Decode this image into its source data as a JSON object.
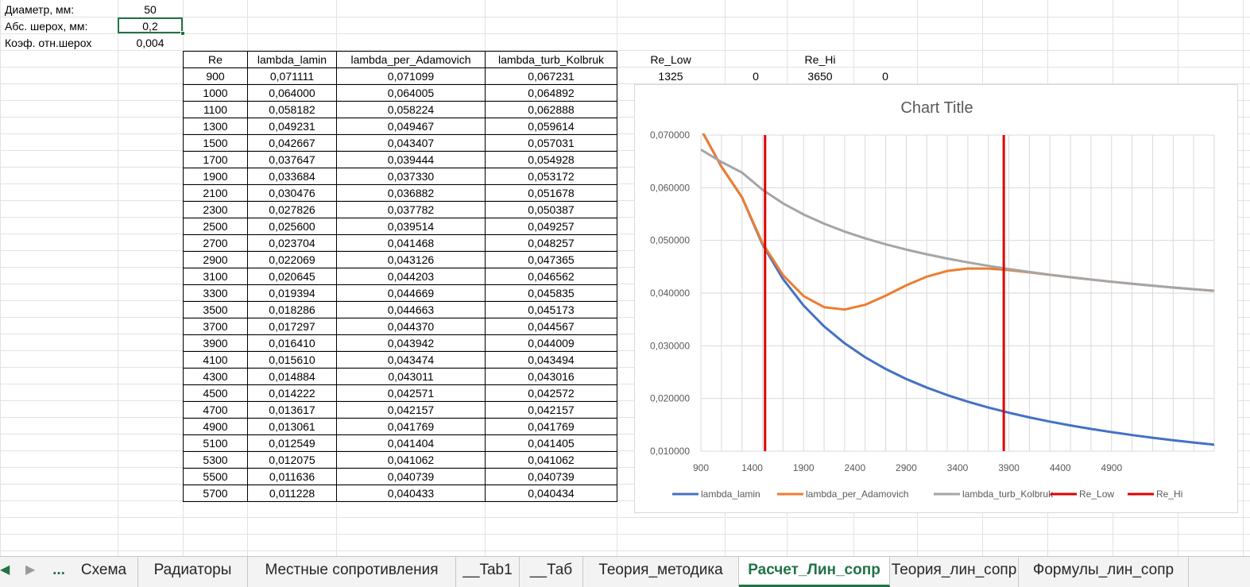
{
  "params": [
    {
      "label": "Диаметр, мм:",
      "value": "50"
    },
    {
      "label": "Абс. шерох, мм:",
      "value": "0,2"
    },
    {
      "label": "Коэф. отн.шерох",
      "value": "0,004"
    }
  ],
  "table": {
    "headers": [
      "Re",
      "lambda_lamin",
      "lambda_per_Adamovich",
      "lambda_turb_Kolbruk"
    ],
    "rows": [
      [
        "900",
        "0,071111",
        "0,071099",
        "0,067231"
      ],
      [
        "1000",
        "0,064000",
        "0,064005",
        "0,064892"
      ],
      [
        "1100",
        "0,058182",
        "0,058224",
        "0,062888"
      ],
      [
        "1300",
        "0,049231",
        "0,049467",
        "0,059614"
      ],
      [
        "1500",
        "0,042667",
        "0,043407",
        "0,057031"
      ],
      [
        "1700",
        "0,037647",
        "0,039444",
        "0,054928"
      ],
      [
        "1900",
        "0,033684",
        "0,037330",
        "0,053172"
      ],
      [
        "2100",
        "0,030476",
        "0,036882",
        "0,051678"
      ],
      [
        "2300",
        "0,027826",
        "0,037782",
        "0,050387"
      ],
      [
        "2500",
        "0,025600",
        "0,039514",
        "0,049257"
      ],
      [
        "2700",
        "0,023704",
        "0,041468",
        "0,048257"
      ],
      [
        "2900",
        "0,022069",
        "0,043126",
        "0,047365"
      ],
      [
        "3100",
        "0,020645",
        "0,044203",
        "0,046562"
      ],
      [
        "3300",
        "0,019394",
        "0,044669",
        "0,045835"
      ],
      [
        "3500",
        "0,018286",
        "0,044663",
        "0,045173"
      ],
      [
        "3700",
        "0,017297",
        "0,044370",
        "0,044567"
      ],
      [
        "3900",
        "0,016410",
        "0,043942",
        "0,044009"
      ],
      [
        "4100",
        "0,015610",
        "0,043474",
        "0,043494"
      ],
      [
        "4300",
        "0,014884",
        "0,043011",
        "0,043016"
      ],
      [
        "4500",
        "0,014222",
        "0,042571",
        "0,042572"
      ],
      [
        "4700",
        "0,013617",
        "0,042157",
        "0,042157"
      ],
      [
        "4900",
        "0,013061",
        "0,041769",
        "0,041769"
      ],
      [
        "5100",
        "0,012549",
        "0,041404",
        "0,041405"
      ],
      [
        "5300",
        "0,012075",
        "0,041062",
        "0,041062"
      ],
      [
        "5500",
        "0,011636",
        "0,040739",
        "0,040739"
      ],
      [
        "5700",
        "0,011228",
        "0,040433",
        "0,040434"
      ]
    ]
  },
  "markers": {
    "re_low_label": "Re_Low",
    "re_low_value": "1325",
    "re_low_zero": "0",
    "re_hi_label": "Re_Hi",
    "re_hi_value": "3650",
    "re_hi_zero": "0"
  },
  "chart_data": {
    "type": "line",
    "title": "Chart Title",
    "xlabel": "",
    "ylabel": "",
    "x": [
      900,
      1000,
      1100,
      1300,
      1500,
      1700,
      1900,
      2100,
      2300,
      2500,
      2700,
      2900,
      3100,
      3300,
      3500,
      3700,
      3900,
      4100,
      4300,
      4500,
      4700,
      4900,
      5100,
      5300,
      5500,
      5700
    ],
    "xlim": [
      900,
      5700
    ],
    "ylim": [
      0.01,
      0.07
    ],
    "x_ticks": [
      "900",
      "1400",
      "1900",
      "2400",
      "2900",
      "3400",
      "3900",
      "4400",
      "4900"
    ],
    "y_ticks": [
      "0,070000",
      "0,060000",
      "0,050000",
      "0,040000",
      "0,030000",
      "0,020000",
      "0,010000"
    ],
    "grid": true,
    "legend": "bottom",
    "series": [
      {
        "name": "lambda_lamin",
        "color": "#4472c4",
        "values": [
          0.071111,
          0.064,
          0.058182,
          0.049231,
          0.042667,
          0.037647,
          0.033684,
          0.030476,
          0.027826,
          0.0256,
          0.023704,
          0.022069,
          0.020645,
          0.019394,
          0.018286,
          0.017297,
          0.01641,
          0.01561,
          0.014884,
          0.014222,
          0.013617,
          0.013061,
          0.012549,
          0.012075,
          0.011636,
          0.011228
        ]
      },
      {
        "name": "lambda_per_Adamovich",
        "color": "#ed7d31",
        "values": [
          0.071099,
          0.064005,
          0.058224,
          0.049467,
          0.043407,
          0.039444,
          0.03733,
          0.036882,
          0.037782,
          0.039514,
          0.041468,
          0.043126,
          0.044203,
          0.044669,
          0.044663,
          0.04437,
          0.043942,
          0.043474,
          0.043011,
          0.042571,
          0.042157,
          0.041769,
          0.041404,
          0.041062,
          0.040739,
          0.040433
        ]
      },
      {
        "name": "lambda_turb_Kolbruk",
        "color": "#a5a5a5",
        "values": [
          0.067231,
          0.064892,
          0.062888,
          0.059614,
          0.057031,
          0.054928,
          0.053172,
          0.051678,
          0.050387,
          0.049257,
          0.048257,
          0.047365,
          0.046562,
          0.045835,
          0.045173,
          0.044567,
          0.044009,
          0.043494,
          0.043016,
          0.042572,
          0.042157,
          0.041769,
          0.041405,
          0.041062,
          0.040739,
          0.040434
        ]
      },
      {
        "name": "Re_Low",
        "color": "#e00000",
        "vertical_x": 1325
      },
      {
        "name": "Re_Hi",
        "color": "#e00000",
        "vertical_x": 3650
      }
    ]
  },
  "tabs": [
    {
      "label": "Схема",
      "active": false
    },
    {
      "label": "Радиаторы",
      "active": false
    },
    {
      "label": "Местные сопротивления",
      "active": false
    },
    {
      "label": "__Tab1",
      "active": false
    },
    {
      "label": "__Таб",
      "active": false
    },
    {
      "label": "Теория_методика",
      "active": false
    },
    {
      "label": "Расчет_Лин_сопр",
      "active": true
    },
    {
      "label": "Теория_лин_сопр",
      "active": false
    },
    {
      "label": "Формулы_лин_сопр",
      "active": false
    }
  ],
  "tab_ellipsis": "...",
  "colors": {
    "accent": "#217346",
    "gridline": "#d4d4d4"
  }
}
